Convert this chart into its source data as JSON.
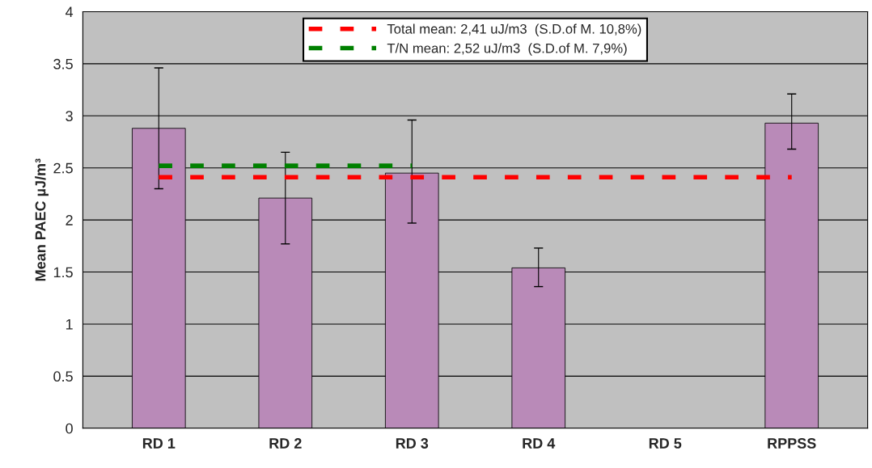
{
  "chart_data": {
    "type": "bar",
    "ylabel": "Mean PAEC µJ/m³",
    "categories": [
      "RD 1",
      "RD 2",
      "RD 3",
      "RD 4",
      "RD 5",
      "RPPSS"
    ],
    "series": [
      {
        "color": "#b98ab8",
        "values": [
          2.88,
          2.21,
          2.45,
          1.54,
          null,
          2.93
        ],
        "errors": [
          [
            2.3,
            3.46
          ],
          [
            1.77,
            2.65
          ],
          [
            1.97,
            2.96
          ],
          [
            1.36,
            1.73
          ],
          null,
          [
            2.68,
            3.21
          ]
        ]
      },
      {
        "type": "line",
        "name": "Total mean: 2,41 uJ/m3  (S.D.of M. 10,8%)",
        "color": "#ff0000",
        "values": [
          2.41,
          2.41,
          2.41,
          2.41,
          2.41,
          2.41
        ],
        "line_style": "dashed"
      },
      {
        "type": "line",
        "name": "T/N mean: 2,52 uJ/m3  (S.D.of M. 7,9%)",
        "color": "#008000",
        "values": [
          2.52,
          2.52,
          2.52,
          null,
          null,
          null
        ],
        "line_style": "dashed"
      }
    ],
    "ylim": [
      0,
      4
    ],
    "yticks": [
      0,
      0.5,
      1,
      1.5,
      2,
      2.5,
      3,
      3.5,
      4
    ],
    "grid": "y",
    "legend": "top"
  }
}
